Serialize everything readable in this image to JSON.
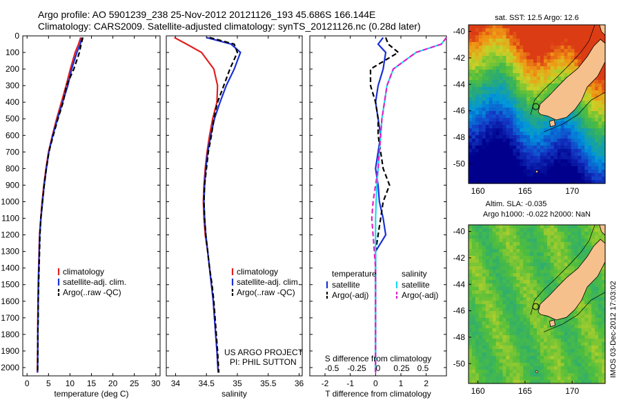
{
  "header": {
    "line1": "Argo profile: AO 5901239_238 25-Nov-2012 20121126_193 45.686S 166.144E",
    "line2": "Climatology: CARS2009. Satellite-adjusted climatology: synTS_20121126.nc (0.28d later)"
  },
  "colors": {
    "climatology": "#e02020",
    "satellite": "#1a2fd6",
    "argo": "#000000",
    "sal_satellite": "#19d8f0",
    "sal_argo": "#e020c8",
    "land": "#f6c08c"
  },
  "maps": {
    "sst_title": "sat. SST: 12.5 Argo: 12.6",
    "sla_title1": "Altim. SLA: -0.035",
    "sla_title2": "Argo h1000: -0.022 h2000: NaN",
    "xticks": [
      "160",
      "165",
      "170"
    ],
    "yticks": [
      "-40",
      "-42",
      "-44",
      "-46",
      "-48",
      "-50"
    ],
    "timestamp": "IMOS 03-Dec-2012 17:03:02"
  },
  "panels": {
    "depth_ticks": [
      "0",
      "100",
      "200",
      "300",
      "400",
      "500",
      "600",
      "700",
      "800",
      "900",
      "1000",
      "1100",
      "1200",
      "1300",
      "1400",
      "1500",
      "1600",
      "1700",
      "1800",
      "1900",
      "2000"
    ],
    "temp": {
      "xlabel": "temperature (deg C)",
      "xticks": [
        "0",
        "5",
        "10",
        "15",
        "20",
        "25",
        "30"
      ],
      "legend": [
        "climatology",
        "satellite-adj. clim.",
        "Argo(..raw -QC)"
      ]
    },
    "sal": {
      "xlabel": "salinity",
      "xticks": [
        "34",
        "34.5",
        "35",
        "35.5",
        "36"
      ],
      "legend": [
        "climatology",
        "satellite-adj. clim.",
        "Argo(..raw -QC)"
      ],
      "credit1": "US ARGO PROJECT",
      "credit2": "PI: PHIL SUTTON"
    },
    "diff": {
      "xlabel": "T difference from climatology",
      "s_label": "S difference from climatology",
      "xticks": [
        "-2",
        "-1",
        "0",
        "1",
        "2"
      ],
      "s_ticks": [
        "-0.5",
        "-0.25",
        "0",
        "0.25",
        "0.5"
      ],
      "legend_t_head": "temperature",
      "legend_s_head": "salinity",
      "legend_t": [
        "satellite",
        "Argo(-adj)"
      ],
      "legend_s": [
        "satellite",
        "Argo(-adj)"
      ]
    }
  },
  "chart_data": [
    {
      "type": "line",
      "xlabel": "temperature (deg C)",
      "ylabel": "",
      "xlim": [
        -1,
        31
      ],
      "ylim": [
        2050,
        0
      ],
      "series": [
        {
          "name": "climatology",
          "color": "#e02020",
          "x": [
            12.5,
            12,
            11.2,
            10.1,
            9.1,
            8.0,
            6.9,
            5.9,
            5.0,
            4.4,
            3.9,
            3.5,
            3.2,
            2.9,
            2.8,
            2.7,
            2.6,
            2.55,
            2.5,
            2.5,
            2.45,
            2.4
          ],
          "y": [
            10,
            50,
            100,
            200,
            300,
            400,
            500,
            600,
            700,
            800,
            900,
            1000,
            1100,
            1200,
            1300,
            1400,
            1500,
            1600,
            1700,
            1800,
            1900,
            2030
          ]
        },
        {
          "name": "satellite-adj. clim.",
          "color": "#1a2fd6",
          "x": [
            12.8,
            12.4,
            11.6,
            10.4,
            9.5,
            8.3,
            7.1,
            6.0,
            5.1,
            4.5,
            4.0,
            3.6,
            3.25,
            2.95,
            2.85,
            2.75,
            2.65,
            2.6,
            2.55,
            2.5,
            2.5,
            2.45
          ],
          "y": [
            10,
            50,
            100,
            200,
            300,
            400,
            500,
            600,
            700,
            800,
            900,
            1000,
            1100,
            1200,
            1300,
            1400,
            1500,
            1600,
            1700,
            1800,
            1900,
            2030
          ]
        },
        {
          "name": "Argo(..raw -QC)",
          "color": "#000000",
          "x": [
            13.0,
            12.6,
            12.2,
            10.9,
            9.2,
            8.4,
            7.2,
            6.1,
            5.1,
            4.5,
            4.0,
            3.6,
            3.2,
            3.0,
            2.9,
            2.8,
            2.7,
            2.6,
            2.6,
            2.5,
            2.5,
            2.45
          ],
          "y": [
            10,
            50,
            100,
            200,
            300,
            400,
            500,
            600,
            700,
            800,
            900,
            1000,
            1100,
            1200,
            1300,
            1400,
            1500,
            1600,
            1700,
            1800,
            1900,
            2030
          ]
        }
      ]
    },
    {
      "type": "line",
      "xlabel": "salinity",
      "ylabel": "",
      "xlim": [
        33.85,
        36.05
      ],
      "ylim": [
        2050,
        0
      ],
      "series": [
        {
          "name": "climatology",
          "color": "#e02020",
          "x": [
            33.98,
            34.18,
            34.42,
            34.62,
            34.68,
            34.67,
            34.6,
            34.55,
            34.51,
            34.48,
            34.46,
            34.45,
            34.46,
            34.48,
            34.52,
            34.55,
            34.58,
            34.61,
            34.63,
            34.65,
            34.67,
            34.69
          ],
          "y": [
            10,
            50,
            100,
            200,
            300,
            400,
            500,
            600,
            700,
            800,
            900,
            1000,
            1100,
            1200,
            1300,
            1400,
            1500,
            1600,
            1700,
            1800,
            1900,
            2030
          ]
        },
        {
          "name": "satellite-adj. clim.",
          "color": "#1a2fd6",
          "x": [
            34.5,
            34.9,
            35.05,
            34.95,
            34.82,
            34.72,
            34.63,
            34.57,
            34.52,
            34.49,
            34.47,
            34.46,
            34.47,
            34.49,
            34.52,
            34.55,
            34.58,
            34.61,
            34.63,
            34.65,
            34.67,
            34.69
          ],
          "y": [
            10,
            50,
            100,
            200,
            300,
            400,
            500,
            600,
            700,
            800,
            900,
            1000,
            1100,
            1200,
            1300,
            1400,
            1500,
            1600,
            1700,
            1800,
            1900,
            2030
          ]
        },
        {
          "name": "Argo(..raw -QC)",
          "color": "#000000",
          "x": [
            34.55,
            34.95,
            35.0,
            34.88,
            34.78,
            34.68,
            34.62,
            34.58,
            34.53,
            34.5,
            34.47,
            34.46,
            34.47,
            34.49,
            34.52,
            34.55,
            34.59,
            34.62,
            34.64,
            34.66,
            34.68,
            34.7
          ],
          "y": [
            10,
            50,
            100,
            200,
            300,
            400,
            500,
            600,
            700,
            800,
            900,
            1000,
            1100,
            1200,
            1300,
            1400,
            1500,
            1600,
            1700,
            1800,
            1900,
            2030
          ]
        }
      ]
    },
    {
      "type": "line",
      "xlabel": "T difference from climatology",
      "ylabel": "",
      "xlim": [
        -2.6,
        2.8
      ],
      "ylim": [
        2050,
        0
      ],
      "series": [
        {
          "name": "temperature satellite",
          "color": "#1a2fd6",
          "x": [
            0.3,
            0.1,
            0.4,
            0.3,
            0.1,
            0.0,
            0.1,
            0.2,
            0.1,
            0.0,
            0.1,
            0.15,
            0.3,
            0.4,
            0.0,
            0.0,
            0.0,
            0.0,
            0.0,
            0.0,
            0.0,
            0.0
          ],
          "y": [
            10,
            50,
            100,
            200,
            300,
            400,
            500,
            600,
            700,
            800,
            900,
            1000,
            1100,
            1200,
            1300,
            1400,
            1500,
            1600,
            1700,
            1800,
            1900,
            2030
          ]
        },
        {
          "name": "temperature Argo(-adj)",
          "color": "#000000",
          "x": [
            0.4,
            0.5,
            0.9,
            -0.2,
            -0.2,
            0.0,
            0.1,
            0.1,
            0.2,
            0.3,
            0.55,
            0.3,
            0.2,
            0.1,
            0.0,
            0.0,
            0.0,
            0.0,
            0.0,
            0.0,
            0.0,
            0.0
          ],
          "y": [
            10,
            50,
            100,
            200,
            300,
            400,
            500,
            600,
            700,
            800,
            900,
            1000,
            1100,
            1200,
            1300,
            1400,
            1500,
            1600,
            1700,
            1800,
            1900,
            2030
          ]
        },
        {
          "name": "salinity satellite",
          "color": "#19d8f0",
          "x": [
            2.8,
            2.6,
            1.6,
            0.7,
            0.45,
            0.35,
            0.25,
            0.2,
            0.15,
            0.1,
            0.05,
            0.02,
            0.0,
            0.0,
            0.0,
            0.0,
            0.0,
            0.0,
            0.0,
            0.0,
            0.0,
            0.0
          ],
          "y": [
            10,
            50,
            100,
            200,
            300,
            400,
            500,
            600,
            700,
            800,
            900,
            1000,
            1100,
            1200,
            1300,
            1400,
            1500,
            1600,
            1700,
            1800,
            1900,
            2030
          ]
        },
        {
          "name": "salinity Argo(-adj)",
          "color": "#e020c8",
          "x": [
            2.8,
            2.6,
            1.6,
            0.7,
            0.45,
            0.35,
            0.25,
            0.2,
            0.15,
            0.1,
            0.0,
            -0.1,
            -0.15,
            -0.1,
            -0.05,
            0.0,
            0.0,
            0.0,
            0.0,
            0.0,
            0.0,
            0.0
          ],
          "y": [
            10,
            50,
            100,
            200,
            300,
            400,
            500,
            600,
            700,
            800,
            900,
            1000,
            1100,
            1200,
            1300,
            1400,
            1500,
            1600,
            1700,
            1800,
            1900,
            2030
          ]
        }
      ]
    },
    {
      "type": "heatmap",
      "title": "sat. SST: 12.5 Argo: 12.6",
      "xlim": [
        159,
        173.5
      ],
      "ylim": [
        -51.5,
        -39.5
      ]
    },
    {
      "type": "heatmap",
      "title": "Altim. SLA: -0.035",
      "xlim": [
        159,
        173.5
      ],
      "ylim": [
        -51.5,
        -39.5
      ]
    }
  ]
}
